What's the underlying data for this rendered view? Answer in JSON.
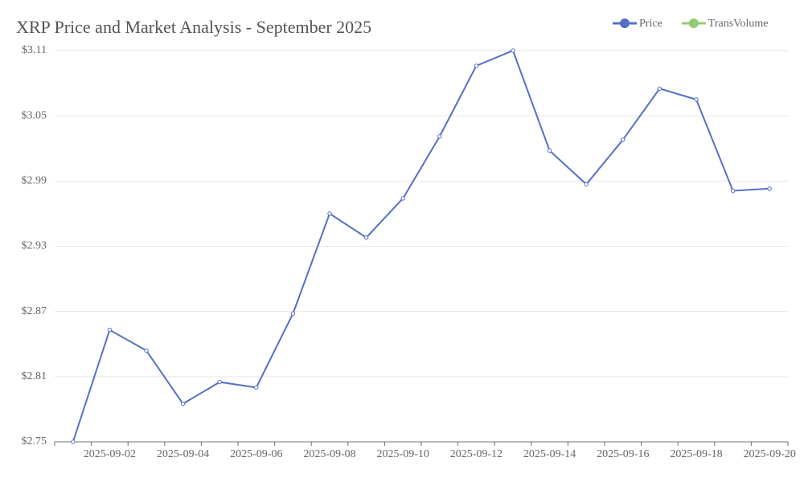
{
  "chart_data": {
    "type": "line",
    "title": "XRP Price and Market Analysis - September 2025",
    "categories": [
      null,
      "2025-09-02",
      null,
      "2025-09-04",
      null,
      "2025-09-06",
      null,
      "2025-09-08",
      null,
      "2025-09-10",
      null,
      "2025-09-12",
      null,
      "2025-09-14",
      null,
      "2025-09-16",
      null,
      "2025-09-18",
      null,
      "2025-09-20"
    ],
    "series": [
      {
        "name": "Price",
        "color": "#5470c6",
        "values": [
          2.75,
          2.853,
          2.834,
          2.785,
          2.805,
          2.8,
          2.868,
          2.96,
          2.938,
          2.974,
          3.031,
          3.096,
          3.11,
          3.018,
          2.987,
          3.028,
          3.075,
          3.065,
          2.981,
          2.983
        ]
      },
      {
        "name": "TransVolume",
        "color": "#91cc75",
        "values": [
          null,
          null,
          null,
          null,
          null,
          null,
          null,
          null,
          null,
          null,
          null,
          null,
          null,
          null,
          null,
          null,
          null,
          null,
          null,
          null
        ]
      }
    ],
    "ylim": [
      2.75,
      3.11
    ],
    "yticks": [
      {
        "value": 2.75,
        "label": "$2.75"
      },
      {
        "value": 2.81,
        "label": "$2.81"
      },
      {
        "value": 2.87,
        "label": "$2.87"
      },
      {
        "value": 2.93,
        "label": "$2.93"
      },
      {
        "value": 2.99,
        "label": "$2.99"
      },
      {
        "value": 3.05,
        "label": "$3.05"
      },
      {
        "value": 3.11,
        "label": "$3.11"
      }
    ],
    "grid": true,
    "legend": "top-right"
  }
}
